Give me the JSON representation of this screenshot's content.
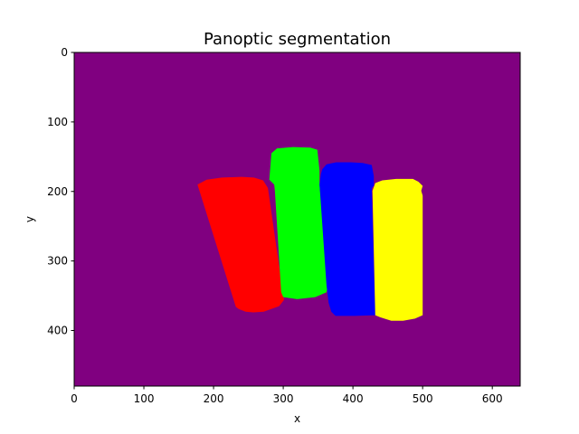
{
  "chart_data": {
    "type": "heatmap",
    "title": "Panoptic segmentation",
    "xlabel": "x",
    "ylabel": "y",
    "xlim": [
      0,
      640
    ],
    "ylim": [
      480,
      0
    ],
    "x_ticks": [
      0,
      100,
      200,
      300,
      400,
      500,
      600
    ],
    "y_ticks": [
      0,
      100,
      200,
      300,
      400
    ],
    "background_color": "#800080",
    "segments": [
      {
        "color": "#ff0000",
        "polygon": [
          [
            177,
            190
          ],
          [
            190,
            183
          ],
          [
            212,
            180
          ],
          [
            240,
            179
          ],
          [
            258,
            180
          ],
          [
            271,
            184
          ],
          [
            278,
            195
          ],
          [
            301,
            356
          ],
          [
            294,
            365
          ],
          [
            272,
            373
          ],
          [
            257,
            374
          ],
          [
            246,
            373
          ],
          [
            236,
            369
          ],
          [
            232,
            366
          ]
        ]
      },
      {
        "color": "#00ff00",
        "polygon": [
          [
            283,
            145
          ],
          [
            291,
            138
          ],
          [
            314,
            136
          ],
          [
            339,
            137
          ],
          [
            349,
            140
          ],
          [
            352,
            170
          ],
          [
            352,
            190
          ],
          [
            365,
            330
          ],
          [
            362,
            345
          ],
          [
            346,
            352
          ],
          [
            320,
            355
          ],
          [
            300,
            352
          ],
          [
            297,
            345
          ],
          [
            288,
            200
          ],
          [
            287,
            190
          ],
          [
            280,
            183
          ]
        ]
      },
      {
        "color": "#0000ff",
        "polygon": [
          [
            356,
            168
          ],
          [
            362,
            161
          ],
          [
            376,
            158
          ],
          [
            397,
            158
          ],
          [
            414,
            159
          ],
          [
            427,
            162
          ],
          [
            430,
            178
          ],
          [
            430,
            192
          ],
          [
            427,
            195
          ],
          [
            432,
            378
          ],
          [
            402,
            379
          ],
          [
            375,
            379
          ],
          [
            369,
            373
          ],
          [
            365,
            360
          ],
          [
            362,
            335
          ],
          [
            352,
            190
          ],
          [
            354,
            175
          ]
        ]
      },
      {
        "color": "#ffff00",
        "polygon": [
          [
            428,
            199
          ],
          [
            432,
            188
          ],
          [
            442,
            184
          ],
          [
            462,
            182
          ],
          [
            486,
            182
          ],
          [
            494,
            186
          ],
          [
            500,
            192
          ],
          [
            498,
            199
          ],
          [
            500,
            206
          ],
          [
            500,
            378
          ],
          [
            489,
            383
          ],
          [
            472,
            386
          ],
          [
            455,
            386
          ],
          [
            439,
            381
          ],
          [
            432,
            378
          ]
        ]
      }
    ]
  }
}
